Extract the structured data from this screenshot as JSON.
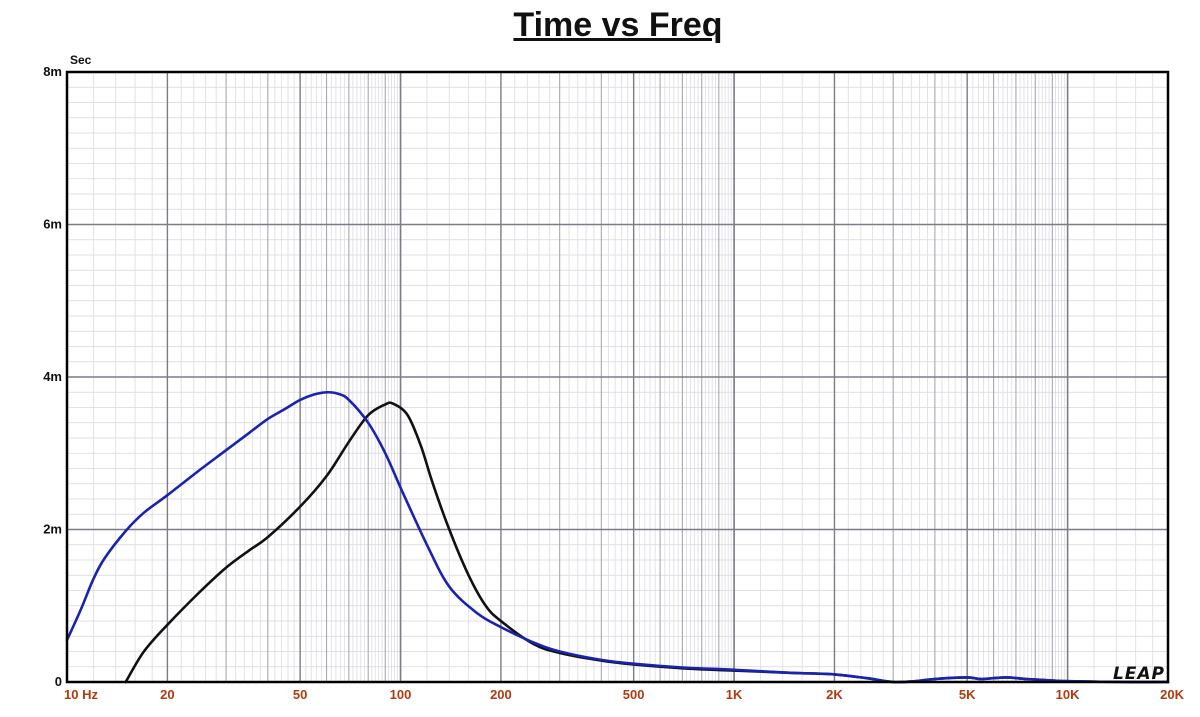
{
  "chart_data": {
    "type": "line",
    "title": "Time vs Freq",
    "ylabel": "Sec",
    "xscale": "log",
    "xlim": [
      10,
      20000
    ],
    "ylim": [
      0,
      0.008
    ],
    "grid": true,
    "legend": "none",
    "x_tick_labels": [
      {
        "value": 10,
        "label": "10  Hz"
      },
      {
        "value": 20,
        "label": "20"
      },
      {
        "value": 50,
        "label": "50"
      },
      {
        "value": 100,
        "label": "100"
      },
      {
        "value": 200,
        "label": "200"
      },
      {
        "value": 500,
        "label": "500"
      },
      {
        "value": 1000,
        "label": "1K"
      },
      {
        "value": 2000,
        "label": "2K"
      },
      {
        "value": 5000,
        "label": "5K"
      },
      {
        "value": 10000,
        "label": "10K"
      },
      {
        "value": 20000,
        "label": "20K"
      }
    ],
    "y_tick_labels": [
      {
        "value": 0,
        "label": "0"
      },
      {
        "value": 0.002,
        "label": "2m"
      },
      {
        "value": 0.004,
        "label": "4m"
      },
      {
        "value": 0.006,
        "label": "6m"
      },
      {
        "value": 0.008,
        "label": "8m"
      }
    ],
    "series": [
      {
        "color": "#111111",
        "style": "solid",
        "points": [
          [
            15,
            0
          ],
          [
            17,
            0.0004
          ],
          [
            20,
            0.00075
          ],
          [
            25,
            0.00118
          ],
          [
            30,
            0.0015
          ],
          [
            35,
            0.00172
          ],
          [
            40,
            0.0019
          ],
          [
            50,
            0.0023
          ],
          [
            60,
            0.0027
          ],
          [
            70,
            0.00315
          ],
          [
            80,
            0.0035
          ],
          [
            90,
            0.00364
          ],
          [
            95,
            0.00365
          ],
          [
            105,
            0.0035
          ],
          [
            115,
            0.0031
          ],
          [
            125,
            0.0026
          ],
          [
            140,
            0.002
          ],
          [
            160,
            0.0014
          ],
          [
            180,
            0.001
          ],
          [
            200,
            0.0008
          ],
          [
            250,
            0.0005
          ],
          [
            300,
            0.00038
          ],
          [
            400,
            0.00028
          ],
          [
            500,
            0.00023
          ],
          [
            700,
            0.00018
          ],
          [
            1000,
            0.00015
          ],
          [
            1500,
            0.00012
          ],
          [
            2000,
            0.0001
          ],
          [
            2500,
            5e-05
          ],
          [
            3000,
            0.0
          ],
          [
            3500,
            1e-05
          ],
          [
            4000,
            4e-05
          ],
          [
            5000,
            6e-05
          ],
          [
            5500,
            4e-05
          ],
          [
            6500,
            6e-05
          ],
          [
            7500,
            4e-05
          ],
          [
            9000,
            2e-05
          ],
          [
            10000,
            1e-05
          ],
          [
            15000,
            0.0
          ],
          [
            20000,
            0.0
          ]
        ]
      },
      {
        "color": "#1a22b0",
        "style": "solid",
        "points": [
          [
            10,
            0.00055
          ],
          [
            11,
            0.00095
          ],
          [
            12,
            0.00135
          ],
          [
            13,
            0.00163
          ],
          [
            15,
            0.00198
          ],
          [
            17,
            0.00222
          ],
          [
            20,
            0.00245
          ],
          [
            25,
            0.00278
          ],
          [
            30,
            0.00304
          ],
          [
            35,
            0.00326
          ],
          [
            40,
            0.00345
          ],
          [
            45,
            0.00358
          ],
          [
            50,
            0.0037
          ],
          [
            55,
            0.00377
          ],
          [
            60,
            0.0038
          ],
          [
            65,
            0.00378
          ],
          [
            70,
            0.0037
          ],
          [
            80,
            0.0034
          ],
          [
            90,
            0.003
          ],
          [
            100,
            0.00255
          ],
          [
            120,
            0.0018
          ],
          [
            140,
            0.00125
          ],
          [
            170,
            0.0009
          ],
          [
            200,
            0.00072
          ],
          [
            250,
            0.00052
          ],
          [
            300,
            0.0004
          ],
          [
            400,
            0.00029
          ],
          [
            500,
            0.00024
          ],
          [
            700,
            0.00019
          ],
          [
            1000,
            0.00016
          ],
          [
            1500,
            0.00012
          ],
          [
            2000,
            0.0001
          ],
          [
            2500,
            5e-05
          ],
          [
            3000,
            0.0
          ],
          [
            3500,
            1e-05
          ],
          [
            4000,
            4e-05
          ],
          [
            5000,
            6e-05
          ],
          [
            5500,
            4e-05
          ],
          [
            6500,
            6e-05
          ],
          [
            7500,
            4e-05
          ],
          [
            9000,
            2e-05
          ],
          [
            10000,
            1e-05
          ],
          [
            15000,
            0.0
          ],
          [
            20000,
            0.0
          ]
        ]
      }
    ]
  },
  "logo_text": "LEAP"
}
